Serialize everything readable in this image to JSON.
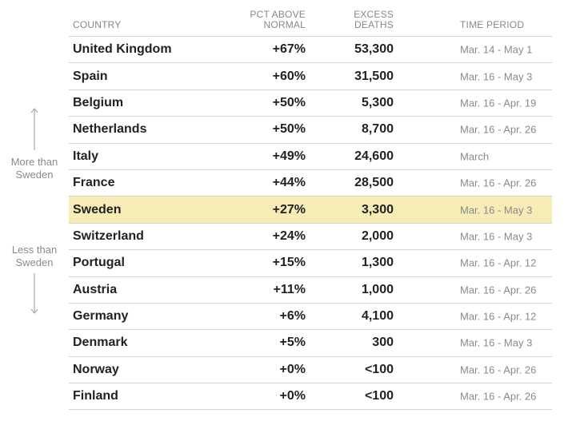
{
  "chart_data": {
    "type": "table",
    "columns": [
      "COUNTRY",
      "PCT ABOVE NORMAL",
      "EXCESS DEATHS",
      "TIME PERIOD"
    ],
    "header": {
      "country": "COUNTRY",
      "pct_line1": "PCT ABOVE",
      "pct_line2": "NORMAL",
      "excess_line1": "EXCESS",
      "excess_line2": "DEATHS",
      "time": "TIME PERIOD"
    },
    "rows": [
      {
        "country": "United Kingdom",
        "pct": "+67%",
        "excess": "53,300",
        "period": "Mar. 14 - May 1"
      },
      {
        "country": "Spain",
        "pct": "+60%",
        "excess": "31,500",
        "period": "Mar. 16 - May 3"
      },
      {
        "country": "Belgium",
        "pct": "+50%",
        "excess": "5,300",
        "period": "Mar. 16 - Apr. 19"
      },
      {
        "country": "Netherlands",
        "pct": "+50%",
        "excess": "8,700",
        "period": "Mar. 16 - Apr. 26"
      },
      {
        "country": "Italy",
        "pct": "+49%",
        "excess": "24,600",
        "period": "March"
      },
      {
        "country": "France",
        "pct": "+44%",
        "excess": "28,500",
        "period": "Mar. 16 - Apr. 26"
      },
      {
        "country": "Sweden",
        "pct": "+27%",
        "excess": "3,300",
        "period": "Mar. 16 - May 3",
        "highlight": true
      },
      {
        "country": "Switzerland",
        "pct": "+24%",
        "excess": "2,000",
        "period": "Mar. 16 - May 3"
      },
      {
        "country": "Portugal",
        "pct": "+15%",
        "excess": "1,300",
        "period": "Mar. 16 - Apr. 12"
      },
      {
        "country": "Austria",
        "pct": "+11%",
        "excess": "1,000",
        "period": "Mar. 16 - Apr. 26"
      },
      {
        "country": "Germany",
        "pct": "+6%",
        "excess": "4,100",
        "period": "Mar. 16 - Apr. 12"
      },
      {
        "country": "Denmark",
        "pct": "+5%",
        "excess": "300",
        "period": "Mar. 16 - May 3"
      },
      {
        "country": "Norway",
        "pct": "+0%",
        "excess": "<100",
        "period": "Mar. 16 - Apr. 26"
      },
      {
        "country": "Finland",
        "pct": "+0%",
        "excess": "<100",
        "period": "Mar. 16 - Apr. 26"
      }
    ],
    "highlight_color": "#f5ecb6",
    "annotations": {
      "more_line1": "More than",
      "more_line2": "Sweden",
      "less_line1": "Less than",
      "less_line2": "Sweden"
    }
  }
}
